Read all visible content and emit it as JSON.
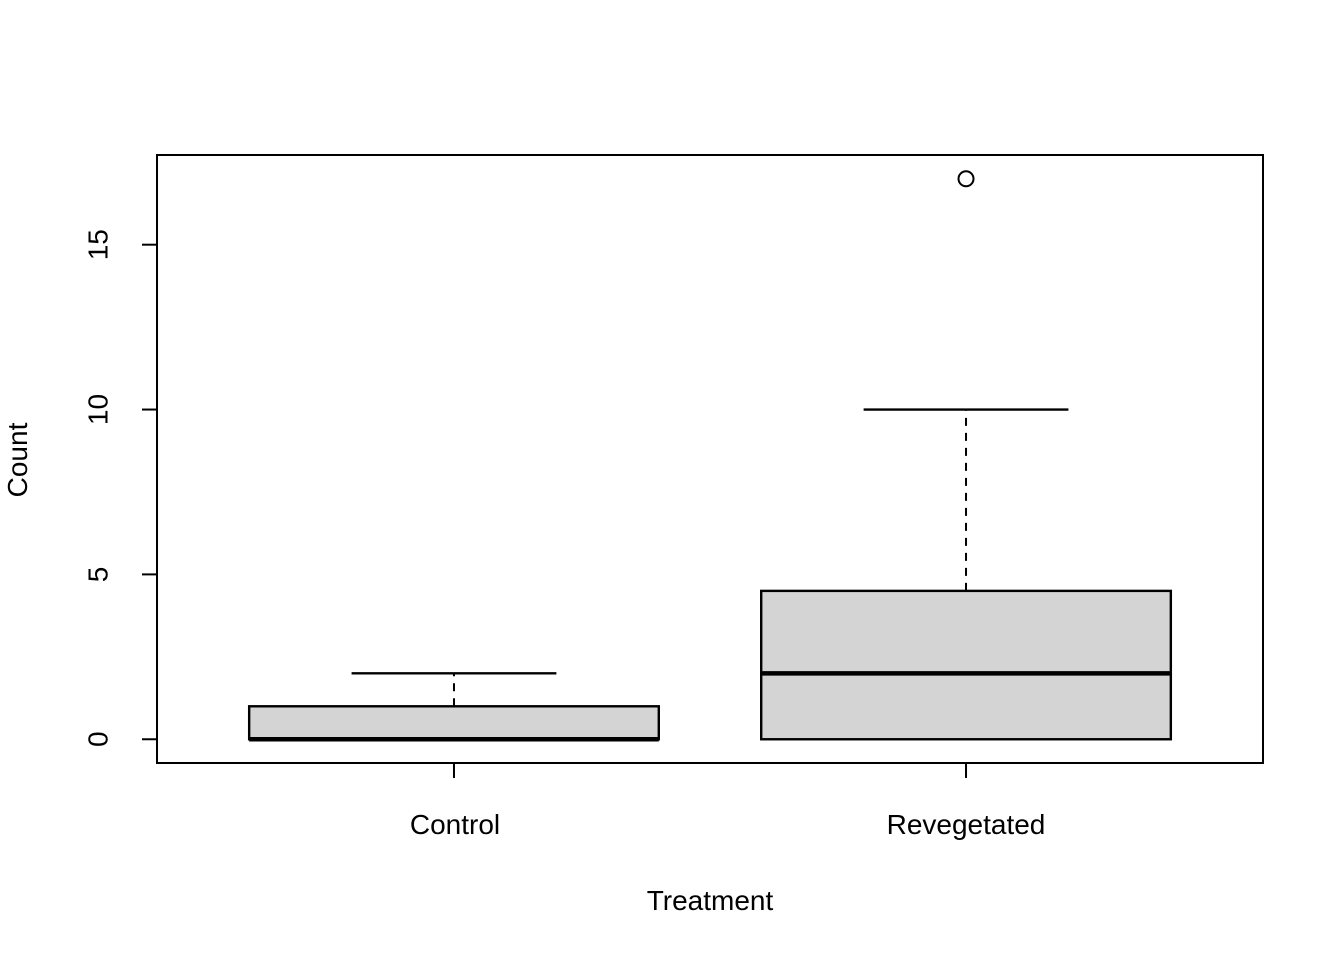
{
  "figure": {
    "background": "#ffffff"
  },
  "colors": {
    "box_fill": "#d4d4d4",
    "line": "#000000",
    "text": "#000000",
    "outlier_fill": "#ffffff"
  },
  "chart_data": {
    "type": "boxplot",
    "title": "",
    "xlabel": "Treatment",
    "ylabel": "Count",
    "categories": [
      "Control",
      "Revegetated"
    ],
    "y_ticks": [
      0,
      5,
      10,
      15
    ],
    "ylim": [
      -0.72,
      17.72
    ],
    "grid": false,
    "legend": null,
    "orientation": "vertical",
    "series": [
      {
        "name": "Control",
        "position": 1,
        "lower_whisker": 0,
        "q1": 0,
        "median": 0,
        "q3": 1,
        "upper_whisker": 2,
        "outliers": []
      },
      {
        "name": "Revegetated",
        "position": 2,
        "lower_whisker": 0,
        "q1": 0,
        "median": 2,
        "q3": 4.5,
        "upper_whisker": 10,
        "outliers": [
          17
        ]
      }
    ],
    "box_width_units": 0.8,
    "cap_width_units": 0.4
  }
}
